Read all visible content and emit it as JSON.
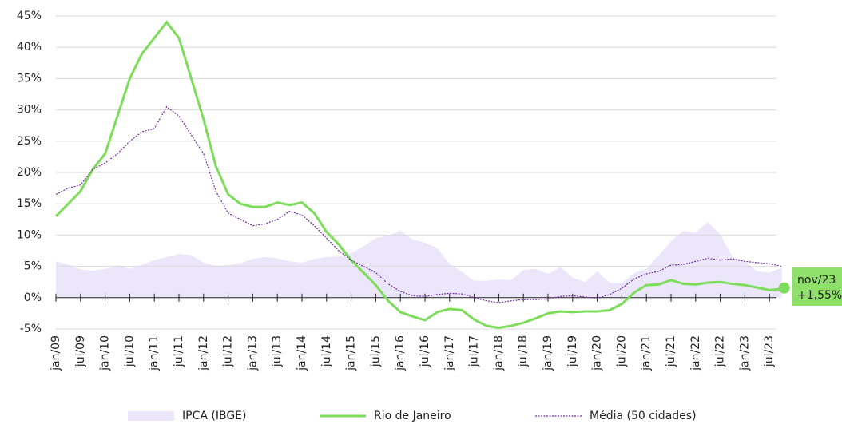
{
  "chart_data": {
    "type": "line",
    "categories": [
      "jan/09",
      null,
      "jul/09",
      null,
      "jan/10",
      null,
      "jul/10",
      null,
      "jan/11",
      null,
      "jul/11",
      null,
      "jan/12",
      null,
      "jul/12",
      null,
      "jan/13",
      null,
      "jul/13",
      null,
      "jan/14",
      null,
      "jul/14",
      null,
      "jan/15",
      null,
      "jul/15",
      null,
      "jan/16",
      null,
      "jul/16",
      null,
      "jan/17",
      null,
      "jul/17",
      null,
      "jan/18",
      null,
      "jul/18",
      null,
      "jan/19",
      null,
      "jul/19",
      null,
      "jan/20",
      null,
      "jul/20",
      null,
      "jan/21",
      null,
      "jul/21",
      null,
      "jan/22",
      null,
      "jul/22",
      null,
      "jan/23",
      null,
      "jul/23",
      null
    ],
    "series": [
      {
        "name": "IPCA (IBGE)",
        "kind": "area",
        "color": "#ece6fb",
        "values": [
          5.8,
          5.3,
          4.5,
          4.3,
          4.6,
          5.2,
          4.6,
          5.3,
          6.0,
          6.5,
          7.0,
          6.8,
          5.6,
          5.1,
          5.2,
          5.5,
          6.2,
          6.5,
          6.3,
          5.8,
          5.6,
          6.2,
          6.5,
          6.6,
          7.1,
          8.2,
          9.5,
          9.9,
          10.7,
          9.3,
          8.8,
          7.9,
          5.4,
          4.1,
          2.7,
          2.7,
          2.9,
          2.8,
          4.4,
          4.6,
          3.8,
          4.9,
          3.2,
          2.5,
          4.2,
          2.4,
          2.3,
          3.9,
          4.6,
          6.8,
          9.0,
          10.7,
          10.4,
          12.1,
          10.1,
          6.5,
          5.8,
          4.2,
          4.0,
          4.8
        ]
      },
      {
        "name": "Rio de Janeiro",
        "kind": "line",
        "color": "#7ddc5a",
        "values": [
          13,
          15,
          17,
          20.5,
          23,
          29,
          35,
          39,
          41.5,
          44,
          41.5,
          35,
          28.5,
          21,
          16.5,
          15,
          14.5,
          14.5,
          15.2,
          14.8,
          15.2,
          13.5,
          10.5,
          8.5,
          6,
          4,
          2,
          -0.5,
          -2.3,
          -3,
          -3.6,
          -2.3,
          -1.8,
          -2,
          -3.5,
          -4.5,
          -4.8,
          -4.5,
          -4,
          -3.3,
          -2.5,
          -2.2,
          -2.3,
          -2.2,
          -2.2,
          -2,
          -1,
          0.8,
          2,
          2.1,
          2.8,
          2.2,
          2.1,
          2.4,
          2.5,
          2.2,
          2,
          1.6,
          1.2,
          1.4
        ]
      },
      {
        "name": "Média (50 cidades)",
        "kind": "dotted",
        "color": "#7030a0",
        "values": [
          16.5,
          17.5,
          18,
          20.5,
          21.5,
          23,
          25,
          26.5,
          27,
          30.5,
          29,
          26,
          23,
          17,
          13.5,
          12.5,
          11.5,
          11.8,
          12.5,
          13.8,
          13.2,
          11.5,
          9.5,
          7.5,
          6,
          5,
          4,
          2.2,
          1,
          0.3,
          0.2,
          0.5,
          0.7,
          0.6,
          0,
          -0.5,
          -0.8,
          -0.5,
          -0.3,
          -0.3,
          -0.2,
          0.2,
          0.3,
          0.1,
          -0.1,
          0.5,
          1.5,
          3,
          3.8,
          4.2,
          5.2,
          5.3,
          5.8,
          6.3,
          6,
          6.2,
          5.8,
          5.6,
          5.4,
          5
        ]
      }
    ],
    "ylim": [
      -5,
      45
    ],
    "yticks": [
      {
        "value": -5,
        "label": "-5%"
      },
      {
        "value": 0,
        "label": "0%"
      },
      {
        "value": 5,
        "label": "5%"
      },
      {
        "value": 10,
        "label": "10%"
      },
      {
        "value": 15,
        "label": "15%"
      },
      {
        "value": 20,
        "label": "20%"
      },
      {
        "value": 25,
        "label": "25%"
      },
      {
        "value": 30,
        "label": "30%"
      },
      {
        "value": 35,
        "label": "35%"
      },
      {
        "value": 40,
        "label": "40%"
      },
      {
        "value": 45,
        "label": "45%"
      }
    ],
    "grid": true,
    "annotation": {
      "label": "nov/23",
      "value": 1.55,
      "value_label": "+1,55%",
      "color": "#8fe06a"
    }
  }
}
